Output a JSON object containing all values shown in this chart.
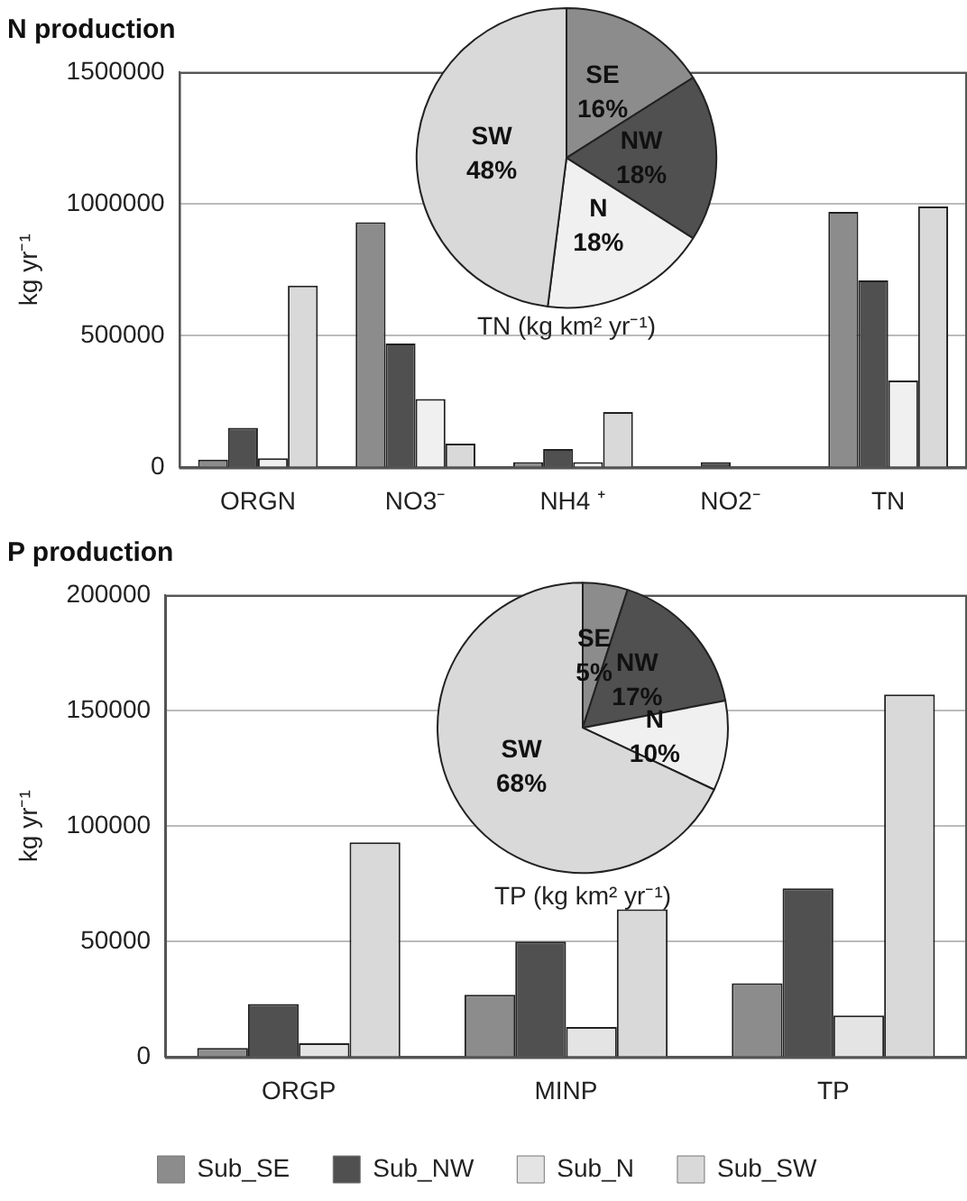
{
  "chart_data": [
    {
      "type": "bar",
      "title": "N production",
      "ylabel": "kg yr⁻¹",
      "categories": [
        "ORGN",
        "NO3⁻",
        "NH4 ⁺",
        "NO2⁻",
        "TN"
      ],
      "series": [
        {
          "color": "#8c8c8c",
          "values": [
            30000,
            930000,
            20000,
            0,
            970000
          ]
        },
        {
          "color": "#505050",
          "values": [
            150000,
            470000,
            70000,
            20000,
            710000
          ]
        },
        {
          "color": "#f0f0f0",
          "values": [
            35000,
            260000,
            20000,
            0,
            330000
          ]
        },
        {
          "color": "#d9d9d9",
          "values": [
            690000,
            90000,
            210000,
            0,
            990000
          ]
        }
      ],
      "ylim": [
        0,
        1500000
      ],
      "yticks": [
        0,
        500000,
        1000000,
        1500000
      ],
      "grid": "y",
      "legend": false
    },
    {
      "type": "pie",
      "title": "TN (kg km² yr⁻¹)",
      "categories": [
        "SE",
        "NW",
        "N",
        "SW"
      ],
      "values": [
        16,
        18,
        18,
        48
      ],
      "value_labels": [
        "16%",
        "18%",
        "18%",
        "48%"
      ],
      "colors": [
        "#8c8c8c",
        "#505050",
        "#f0f0f0",
        "#d9d9d9"
      ]
    },
    {
      "type": "bar",
      "title": "P production",
      "ylabel": "kg yr⁻¹",
      "categories": [
        "ORGP",
        "MINP",
        "TP"
      ],
      "series": [
        {
          "name": "Sub_SE",
          "color": "#8c8c8c",
          "values": [
            4000,
            27000,
            32000
          ]
        },
        {
          "name": "Sub_NW",
          "color": "#505050",
          "values": [
            23000,
            50000,
            73000
          ]
        },
        {
          "name": "Sub_N",
          "color": "#e4e4e4",
          "values": [
            6000,
            13000,
            18000
          ]
        },
        {
          "name": "Sub_SW",
          "color": "#d9d9d9",
          "values": [
            93000,
            64000,
            157000
          ]
        }
      ],
      "ylim": [
        0,
        200000
      ],
      "yticks": [
        0,
        50000,
        100000,
        150000,
        200000
      ],
      "grid": "y",
      "legend": "bottom"
    },
    {
      "type": "pie",
      "title": "TP (kg km² yr⁻¹)",
      "categories": [
        "SE",
        "NW",
        "N",
        "SW"
      ],
      "values": [
        5,
        17,
        10,
        68
      ],
      "value_labels": [
        "5%",
        "17%",
        "10%",
        "68%"
      ],
      "colors": [
        "#8c8c8c",
        "#505050",
        "#f0f0f0",
        "#d9d9d9"
      ]
    }
  ]
}
